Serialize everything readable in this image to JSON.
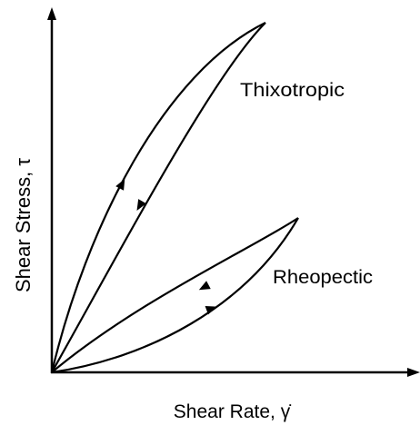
{
  "labels": {
    "thixotropic": "Thixotropic",
    "rheopectic": "Rheopectic"
  },
  "axes": {
    "y_label": "Shear Stress, τ",
    "x_label": "Shear Rate, γ̇"
  }
}
